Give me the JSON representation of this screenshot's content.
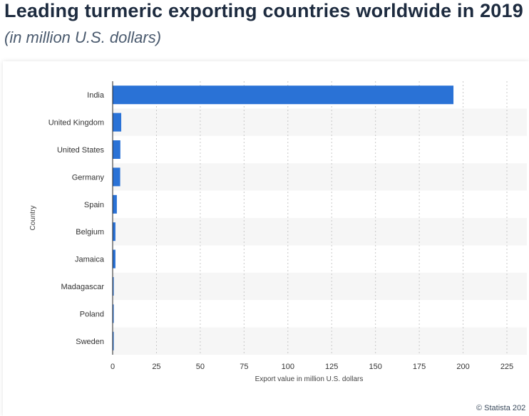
{
  "header": {
    "title": "Leading turmeric exporting countries worldwide in 2019",
    "subtitle": "(in million U.S. dollars)"
  },
  "footer": {
    "credit": "© Statista 202"
  },
  "colors": {
    "bar": "#2a72d6",
    "band": "#f6f6f6",
    "grid": "#c8c8c8"
  },
  "chart_data": {
    "type": "bar",
    "orientation": "horizontal",
    "categories": [
      "India",
      "United Kingdom",
      "United States",
      "Germany",
      "Spain",
      "Belgium",
      "Jamaica",
      "Madagascar",
      "Poland",
      "Sweden"
    ],
    "values": [
      194.5,
      4.9,
      4.4,
      4.3,
      2.4,
      1.6,
      1.6,
      0.5,
      0.5,
      0.4
    ],
    "xlabel": "Export value in million U.S. dollars",
    "ylabel": "Country",
    "xlim": [
      0,
      225
    ],
    "xticks": [
      0,
      25,
      50,
      75,
      100,
      125,
      150,
      175,
      200,
      225
    ],
    "grid": "vertical dashed"
  }
}
